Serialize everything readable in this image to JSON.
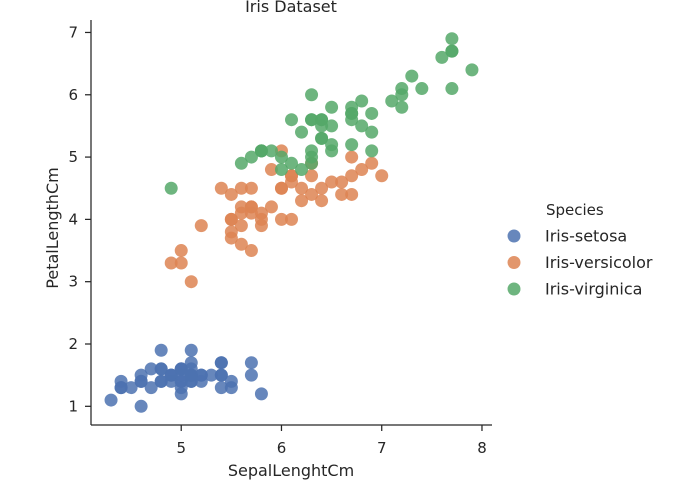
{
  "chart_data": {
    "type": "scatter",
    "title": "Iris Dataset",
    "xlabel": "SepalLenghtCm",
    "ylabel": "PetalLengthCm",
    "xlim": [
      4.1,
      8.1
    ],
    "ylim": [
      0.7,
      7.2
    ],
    "xticks": [
      5,
      6,
      7,
      8
    ],
    "yticks": [
      1,
      2,
      3,
      4,
      5,
      6,
      7
    ],
    "grid": false,
    "legend_title": "Species",
    "legend_position": "right",
    "series": [
      {
        "name": "Iris-setosa",
        "color": "#4c72b0",
        "points": [
          [
            5.1,
            1.4
          ],
          [
            4.9,
            1.4
          ],
          [
            4.7,
            1.3
          ],
          [
            4.6,
            1.5
          ],
          [
            5.0,
            1.4
          ],
          [
            5.4,
            1.7
          ],
          [
            4.6,
            1.4
          ],
          [
            5.0,
            1.5
          ],
          [
            4.4,
            1.4
          ],
          [
            4.9,
            1.5
          ],
          [
            5.4,
            1.5
          ],
          [
            4.8,
            1.6
          ],
          [
            4.8,
            1.4
          ],
          [
            4.3,
            1.1
          ],
          [
            5.8,
            1.2
          ],
          [
            5.7,
            1.5
          ],
          [
            5.4,
            1.3
          ],
          [
            5.1,
            1.4
          ],
          [
            5.7,
            1.7
          ],
          [
            5.1,
            1.5
          ],
          [
            5.4,
            1.7
          ],
          [
            5.1,
            1.5
          ],
          [
            4.6,
            1.0
          ],
          [
            5.1,
            1.7
          ],
          [
            4.8,
            1.9
          ],
          [
            5.0,
            1.6
          ],
          [
            5.0,
            1.6
          ],
          [
            5.2,
            1.5
          ],
          [
            5.2,
            1.4
          ],
          [
            4.7,
            1.6
          ],
          [
            4.8,
            1.6
          ],
          [
            5.4,
            1.5
          ],
          [
            5.2,
            1.5
          ],
          [
            5.5,
            1.4
          ],
          [
            4.9,
            1.5
          ],
          [
            5.0,
            1.2
          ],
          [
            5.5,
            1.3
          ],
          [
            4.9,
            1.5
          ],
          [
            4.4,
            1.3
          ],
          [
            5.1,
            1.5
          ],
          [
            5.0,
            1.3
          ],
          [
            4.5,
            1.3
          ],
          [
            4.4,
            1.3
          ],
          [
            5.0,
            1.6
          ],
          [
            5.1,
            1.9
          ],
          [
            4.8,
            1.4
          ],
          [
            5.1,
            1.6
          ],
          [
            4.6,
            1.4
          ],
          [
            5.3,
            1.5
          ],
          [
            5.0,
            1.4
          ]
        ]
      },
      {
        "name": "Iris-versicolor",
        "color": "#dd8452",
        "points": [
          [
            7.0,
            4.7
          ],
          [
            6.4,
            4.5
          ],
          [
            6.9,
            4.9
          ],
          [
            5.5,
            4.0
          ],
          [
            6.5,
            4.6
          ],
          [
            5.7,
            4.5
          ],
          [
            6.3,
            4.7
          ],
          [
            4.9,
            3.3
          ],
          [
            6.6,
            4.6
          ],
          [
            5.2,
            3.9
          ],
          [
            5.0,
            3.5
          ],
          [
            5.9,
            4.2
          ],
          [
            6.0,
            4.0
          ],
          [
            6.1,
            4.7
          ],
          [
            5.6,
            3.6
          ],
          [
            6.7,
            4.4
          ],
          [
            5.6,
            4.5
          ],
          [
            5.8,
            4.1
          ],
          [
            6.2,
            4.5
          ],
          [
            5.6,
            3.9
          ],
          [
            5.9,
            4.8
          ],
          [
            6.1,
            4.0
          ],
          [
            6.3,
            4.9
          ],
          [
            6.1,
            4.7
          ],
          [
            6.4,
            4.3
          ],
          [
            6.6,
            4.4
          ],
          [
            6.8,
            4.8
          ],
          [
            6.7,
            5.0
          ],
          [
            6.0,
            4.5
          ],
          [
            5.7,
            3.5
          ],
          [
            5.5,
            3.8
          ],
          [
            5.5,
            3.7
          ],
          [
            5.8,
            3.9
          ],
          [
            6.0,
            5.1
          ],
          [
            5.4,
            4.5
          ],
          [
            6.0,
            4.5
          ],
          [
            6.7,
            4.7
          ],
          [
            6.3,
            4.4
          ],
          [
            5.6,
            4.1
          ],
          [
            5.5,
            4.0
          ],
          [
            5.5,
            4.4
          ],
          [
            6.1,
            4.6
          ],
          [
            5.8,
            4.0
          ],
          [
            5.0,
            3.3
          ],
          [
            5.6,
            4.2
          ],
          [
            5.7,
            4.2
          ],
          [
            5.7,
            4.2
          ],
          [
            6.2,
            4.3
          ],
          [
            5.1,
            3.0
          ],
          [
            5.7,
            4.1
          ]
        ]
      },
      {
        "name": "Iris-virginica",
        "color": "#55a868",
        "points": [
          [
            6.3,
            6.0
          ],
          [
            5.8,
            5.1
          ],
          [
            7.1,
            5.9
          ],
          [
            6.3,
            5.6
          ],
          [
            6.5,
            5.8
          ],
          [
            7.6,
            6.6
          ],
          [
            4.9,
            4.5
          ],
          [
            7.3,
            6.3
          ],
          [
            6.7,
            5.8
          ],
          [
            7.2,
            6.1
          ],
          [
            6.5,
            5.1
          ],
          [
            6.4,
            5.3
          ],
          [
            6.8,
            5.5
          ],
          [
            5.7,
            5.0
          ],
          [
            5.8,
            5.1
          ],
          [
            6.4,
            5.3
          ],
          [
            6.5,
            5.5
          ],
          [
            7.7,
            6.7
          ],
          [
            7.7,
            6.9
          ],
          [
            6.0,
            5.0
          ],
          [
            6.9,
            5.7
          ],
          [
            5.6,
            4.9
          ],
          [
            7.7,
            6.7
          ],
          [
            6.3,
            4.9
          ],
          [
            6.7,
            5.7
          ],
          [
            7.2,
            6.0
          ],
          [
            6.2,
            4.8
          ],
          [
            6.1,
            4.9
          ],
          [
            6.4,
            5.6
          ],
          [
            7.2,
            5.8
          ],
          [
            7.4,
            6.1
          ],
          [
            7.9,
            6.4
          ],
          [
            6.4,
            5.6
          ],
          [
            6.3,
            5.1
          ],
          [
            6.1,
            5.6
          ],
          [
            7.7,
            6.1
          ],
          [
            6.3,
            5.6
          ],
          [
            6.4,
            5.5
          ],
          [
            6.0,
            4.8
          ],
          [
            6.9,
            5.4
          ],
          [
            6.7,
            5.6
          ],
          [
            6.9,
            5.1
          ],
          [
            5.8,
            5.1
          ],
          [
            6.8,
            5.9
          ],
          [
            6.7,
            5.7
          ],
          [
            6.7,
            5.2
          ],
          [
            6.3,
            5.0
          ],
          [
            6.5,
            5.2
          ],
          [
            6.2,
            5.4
          ],
          [
            5.9,
            5.1
          ]
        ]
      }
    ]
  }
}
